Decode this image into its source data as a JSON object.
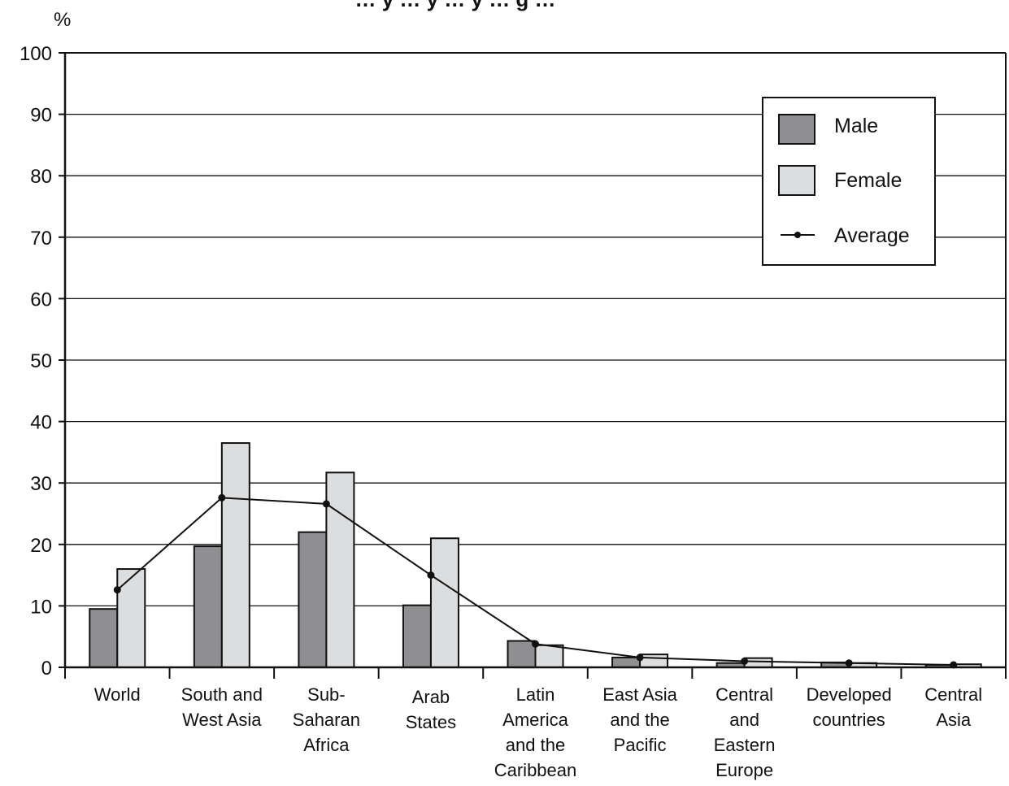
{
  "chart_data": {
    "type": "bar",
    "title": "… y … y … y … g …",
    "ylabel": "%",
    "ylim": [
      0,
      100
    ],
    "yticks": [
      0,
      10,
      20,
      30,
      40,
      50,
      60,
      70,
      80,
      90,
      100
    ],
    "grid": true,
    "legend_position": "top-right",
    "categories": [
      [
        "World"
      ],
      [
        "South and",
        "West Asia"
      ],
      [
        "Sub-",
        "Saharan",
        "Africa"
      ],
      [
        "Arab",
        "States"
      ],
      [
        "Latin",
        "America",
        "and the",
        "Caribbean"
      ],
      [
        "East Asia",
        "and the",
        "Pacific"
      ],
      [
        "Central",
        "and",
        "Eastern",
        "Europe"
      ],
      [
        "Developed",
        "countries"
      ],
      [
        "Central",
        "Asia"
      ]
    ],
    "series": [
      {
        "name": "Male",
        "kind": "bar",
        "color": "#8f8f91",
        "values": [
          9.5,
          19.7,
          22.0,
          10.1,
          4.3,
          1.6,
          0.7,
          0.8,
          0.4
        ]
      },
      {
        "name": "Female",
        "kind": "bar",
        "color": "#dcdddf",
        "values": [
          16.0,
          36.5,
          31.7,
          21.0,
          3.6,
          2.1,
          1.5,
          0.7,
          0.5
        ]
      },
      {
        "name": "Average",
        "kind": "line",
        "color": "#111111",
        "values": [
          12.6,
          27.6,
          26.6,
          15.0,
          3.8,
          1.6,
          1.0,
          0.7,
          0.4
        ]
      }
    ]
  }
}
